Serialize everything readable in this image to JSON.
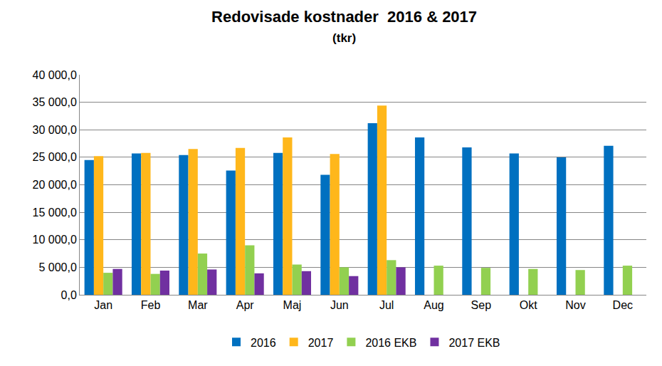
{
  "chart_data": {
    "type": "bar",
    "title": "Redovisade kostnader  2016 & 2017",
    "subtitle": "(tkr)",
    "categories": [
      "Jan",
      "Feb",
      "Mar",
      "Apr",
      "Maj",
      "Jun",
      "Jul",
      "Aug",
      "Sep",
      "Okt",
      "Nov",
      "Dec"
    ],
    "series": [
      {
        "name": "2016",
        "color": "#0070c0",
        "values": [
          24500,
          25700,
          25400,
          22600,
          25800,
          21800,
          31200,
          28600,
          26800,
          25700,
          25000,
          27100
        ]
      },
      {
        "name": "2017",
        "color": "#ffb71b",
        "values": [
          25200,
          25800,
          26500,
          26700,
          28600,
          25600,
          34400,
          null,
          null,
          null,
          null,
          null
        ]
      },
      {
        "name": "2016 EKB",
        "color": "#92d050",
        "values": [
          4000,
          3800,
          7500,
          9000,
          5500,
          5000,
          6300,
          5300,
          4900,
          4700,
          4500,
          5300
        ]
      },
      {
        "name": "2017 EKB",
        "color": "#7030a0",
        "values": [
          4700,
          4400,
          4600,
          3900,
          4300,
          3400,
          5000,
          null,
          null,
          null,
          null,
          null
        ]
      }
    ],
    "ylim": [
      0,
      40000
    ],
    "yticks": [
      {
        "value": 0,
        "label": "0,0"
      },
      {
        "value": 5000,
        "label": "5 000,0"
      },
      {
        "value": 10000,
        "label": "10 000,0"
      },
      {
        "value": 15000,
        "label": "15 000,0"
      },
      {
        "value": 20000,
        "label": "20 000,0"
      },
      {
        "value": 25000,
        "label": "25 000,0"
      },
      {
        "value": 30000,
        "label": "30 000,0"
      },
      {
        "value": 35000,
        "label": "35 000,0"
      },
      {
        "value": 40000,
        "label": "40 000,0"
      }
    ],
    "grid": true,
    "legend": "bottom"
  }
}
